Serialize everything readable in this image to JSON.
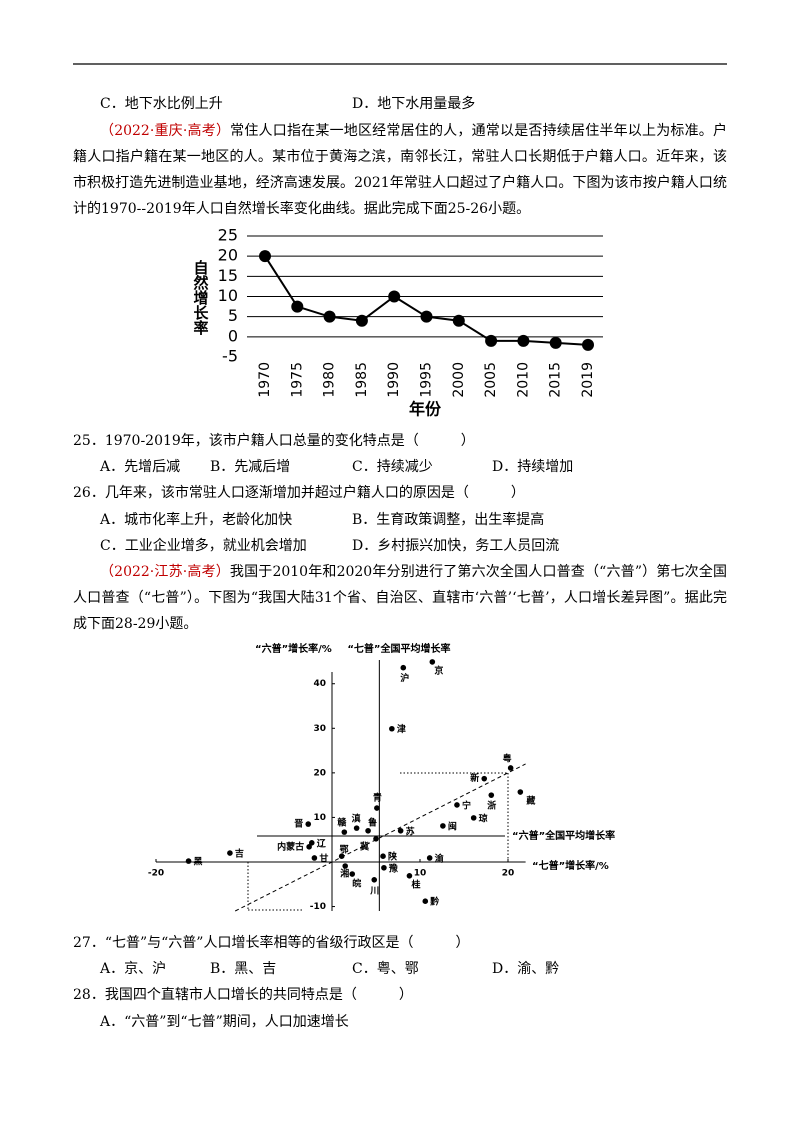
{
  "prev_options": [
    "C．地下水比例上升",
    "D．地下水用量最多"
  ],
  "passages": [
    {
      "source": "（2022·重庆·高考）",
      "text": "常住人口指在某一地区经常居住的人，通常以是否持续居住半年以上为标准。户籍人口指户籍在某一地区的人。某市位于黄海之滨，南邻长江，常驻人口长期低于户籍人口。近年来，该市积极打造先进制造业基地，经济高速发展。2021年常驻人口超过了户籍人口。下图为该市按户籍人口统计的1970--2019年人口自然增长率变化曲线。据此完成下面25-26小题。"
    },
    {
      "source": "（2022·江苏·高考）",
      "text": "我国于2010年和2020年分别进行了第六次全国人口普查（“六普”）第七次全国人口普查（“七普”）。下图为“我国大陆31个省、自治区、直辖市‘六普’‘七普’，人口增长差异图”。据此完成下面28-29小题。"
    }
  ],
  "questions": [
    {
      "stem": "25．1970-2019年，该市户籍人口总量的变化特点是（　　　）",
      "options": [
        "A．先增后减",
        "B．先减后增",
        "C．持续减少",
        "D．持续增加"
      ]
    },
    {
      "stem": "26．几年来，该市常驻人口逐渐增加并超过户籍人口的原因是（　　　）",
      "options": [
        "A．城市化率上升，老龄化加快",
        "B．生育政策调整，出生率提高",
        "C．工业企业增多，就业机会增加",
        "D．乡村振兴加快，务工人员回流"
      ]
    },
    {
      "stem": "27．“七普”与“六普”人口增长率相等的省级行政区是（　　　）",
      "options": [
        "A．京、沪",
        "B．黑、吉",
        "C．粤、鄂",
        "D．渝、黔"
      ]
    },
    {
      "stem": "28．我国四个直辖市人口增长的共同特点是（　　　）",
      "options": [
        "A．“六普”到“七普”期间，人口加速增长"
      ]
    }
  ],
  "chart_data": [
    {
      "type": "line",
      "ylabel": "自然增长率",
      "xlabel": "年份",
      "categories": [
        "1970",
        "1975",
        "1980",
        "1985",
        "1990",
        "1995",
        "2000",
        "2005",
        "2010",
        "2015",
        "2019"
      ],
      "values": [
        20,
        7.5,
        5,
        4,
        10,
        5,
        4,
        -1,
        -1,
        -1.5,
        -2
      ],
      "ylim": [
        -5,
        25
      ],
      "yticks": [
        -5,
        0,
        5,
        10,
        15,
        20,
        25
      ],
      "grid": true,
      "color": "#000000"
    },
    {
      "type": "scatter",
      "xlabel": "“七普”增长率/%",
      "ylabel": "“六普”增长率/%",
      "xlim": [
        -20,
        22
      ],
      "ylim": [
        -11,
        46
      ],
      "xticks": [
        -20,
        10,
        20
      ],
      "yticks": [
        -10,
        10,
        20,
        30,
        40
      ],
      "labels": [
        "京",
        "沪",
        "津",
        "粤",
        "新",
        "藏",
        "浙",
        "宁",
        "琼",
        "闽",
        "青",
        "晋",
        "滇",
        "赣",
        "鲁",
        "冀",
        "苏",
        "辽",
        "内蒙古",
        "吉",
        "黑",
        "甘",
        "鄂",
        "陕",
        "渝",
        "豫",
        "湘",
        "皖",
        "川",
        "桂",
        "黔"
      ],
      "x": [
        11.4,
        8.1,
        6.8,
        20.3,
        17.3,
        21.4,
        18.1,
        14.2,
        16.1,
        12.6,
        5.1,
        -2.7,
        2.8,
        1.4,
        4.1,
        5.0,
        7.8,
        -2.3,
        -2.6,
        -11.6,
        -16.3,
        -2.0,
        1.1,
        5.8,
        11.1,
        5.9,
        1.5,
        2.3,
        4.8,
        8.8,
        10.6
      ],
      "values": [
        44.9,
        43.6,
        29.9,
        21.1,
        18.7,
        15.7,
        15.0,
        12.8,
        9.9,
        8.1,
        12.1,
        8.5,
        7.6,
        6.7,
        7.0,
        5.2,
        7.0,
        4.3,
        3.4,
        2.0,
        0.2,
        0.9,
        1.3,
        1.3,
        0.9,
        -1.3,
        -0.9,
        -2.7,
        -4.0,
        -3.1,
        -8.8
      ],
      "reference_lines": [
        {
          "axis": "x",
          "value": 5.38,
          "label": "“七普”全国平均增长率"
        },
        {
          "axis": "y",
          "value": 5.84,
          "label": "“六普”全国平均增长率"
        }
      ],
      "diagonal": true,
      "color": "#000000"
    }
  ]
}
